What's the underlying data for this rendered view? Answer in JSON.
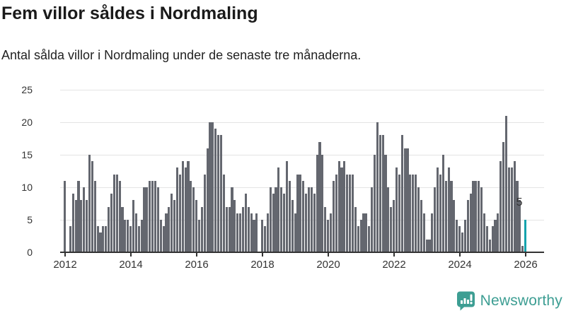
{
  "header": {
    "title": "Fem villor såldes i Nordmaling",
    "subtitle": "Antal sålda villor i Nordmaling under de senaste tre månaderna."
  },
  "chart_data": {
    "type": "bar",
    "title": "Fem villor såldes i Nordmaling",
    "subtitle": "Antal sålda villor i Nordmaling under de senaste tre månaderna.",
    "ylabel": "",
    "xlabel": "",
    "ylim": [
      0,
      25
    ],
    "y_ticks": [
      0,
      5,
      10,
      15,
      20,
      25
    ],
    "x_tick_years": [
      2012,
      2014,
      2016,
      2018,
      2020,
      2022,
      2024,
      2026
    ],
    "grid": "horizontal",
    "start_year": 2012,
    "start_month": 1,
    "frequency": "monthly",
    "values": [
      11,
      0,
      4,
      9,
      8,
      11,
      8,
      10,
      8,
      15,
      14,
      11,
      4,
      3,
      4,
      4,
      7,
      9,
      12,
      12,
      11,
      7,
      5,
      5,
      4,
      8,
      6,
      4,
      5,
      10,
      10,
      11,
      11,
      11,
      10,
      5,
      4,
      6,
      7,
      9,
      8,
      13,
      12,
      14,
      13,
      14,
      11,
      10,
      8,
      5,
      7,
      12,
      16,
      20,
      20,
      19,
      18,
      18,
      12,
      7,
      7,
      10,
      8,
      6,
      6,
      7,
      9,
      7,
      6,
      5,
      6,
      0,
      5,
      4,
      6,
      10,
      9,
      10,
      13,
      10,
      9,
      14,
      11,
      8,
      6,
      12,
      12,
      11,
      9,
      10,
      10,
      9,
      15,
      17,
      15,
      7,
      5,
      6,
      11,
      12,
      14,
      13,
      14,
      12,
      12,
      12,
      7,
      4,
      5,
      6,
      6,
      4,
      10,
      15,
      20,
      18,
      18,
      15,
      10,
      7,
      8,
      13,
      12,
      18,
      16,
      16,
      12,
      12,
      12,
      10,
      8,
      6,
      2,
      2,
      6,
      10,
      13,
      12,
      15,
      11,
      13,
      11,
      8,
      5,
      4,
      3,
      5,
      8,
      9,
      11,
      11,
      11,
      10,
      6,
      4,
      2,
      4,
      5,
      6,
      14,
      17,
      21,
      13,
      13,
      14,
      11,
      8,
      1,
      5
    ],
    "highlight_index": 168,
    "highlight_value_label": "5",
    "colors": {
      "bar": "#64676f",
      "highlight": "#15a3ad",
      "grid": "#e4e4e4",
      "axis": "#333333",
      "text": "#333333"
    }
  },
  "footer": {
    "brand": "Newsworthy",
    "brand_color": "#3d9e93",
    "icon": "bar-chart-speech-bubble"
  }
}
